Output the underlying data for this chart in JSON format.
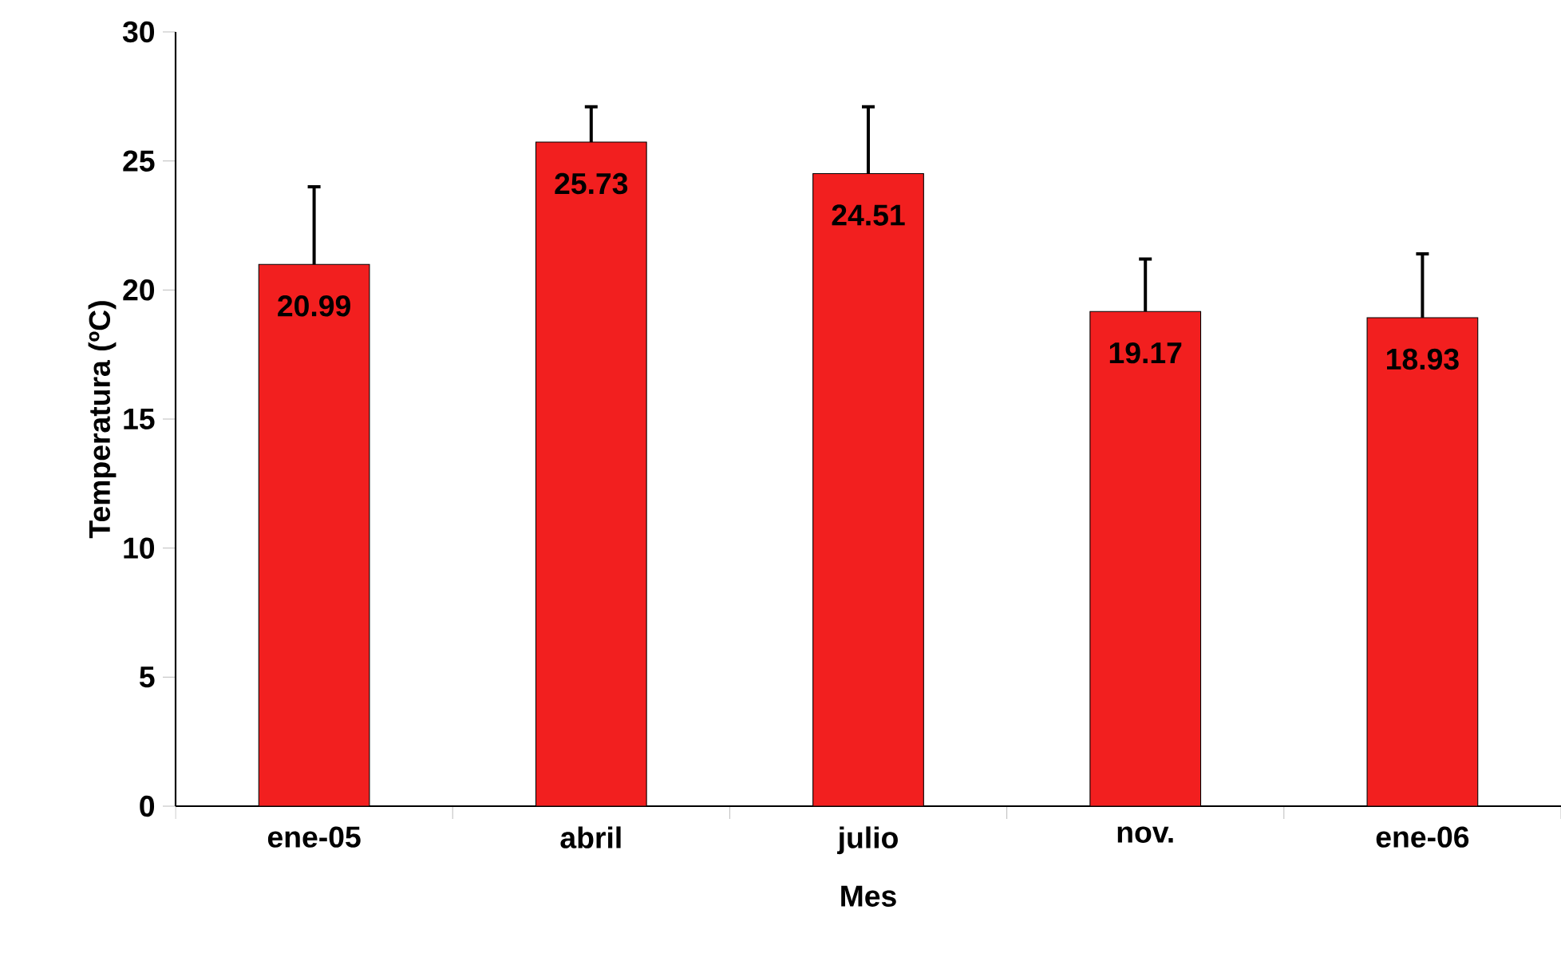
{
  "chart_data": {
    "type": "bar",
    "xlabel": "Mes",
    "ylabel": "Temperatura (ºC)",
    "categories": [
      "ene-05",
      "abril",
      "julio",
      "nov.",
      "ene-06"
    ],
    "values": [
      20.99,
      25.73,
      24.51,
      19.17,
      18.93
    ],
    "errors": [
      [
        20.99,
        24.0
      ],
      [
        25.73,
        27.1
      ],
      [
        24.51,
        27.1
      ],
      [
        19.17,
        21.2
      ],
      [
        18.93,
        21.4
      ]
    ],
    "color": "#f21f1f",
    "data_labels": true,
    "ylim": [
      0,
      30
    ],
    "yticks": [
      0,
      5,
      10,
      15,
      20,
      25,
      30
    ]
  }
}
